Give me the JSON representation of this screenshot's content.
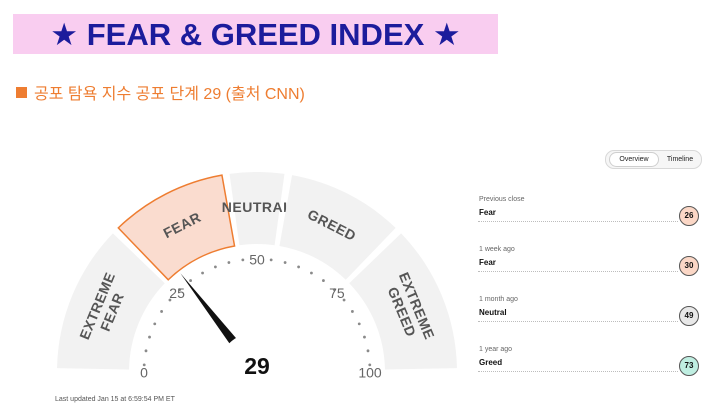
{
  "banner": {
    "title": "★ FEAR & GREED INDEX ★"
  },
  "subtitle": {
    "text": "공포 탐욕 지수 공포 단계 29 (출처 CNN)"
  },
  "gauge": {
    "value": 29,
    "score_text": "29",
    "segments": [
      {
        "label": "EXTREME FEAR",
        "lines": [
          "EXTREME",
          "FEAR"
        ],
        "from": 0,
        "to": 25
      },
      {
        "label": "FEAR",
        "lines": [
          "FEAR"
        ],
        "from": 25,
        "to": 45
      },
      {
        "label": "NEUTRAL",
        "lines": [
          "NEUTRAL"
        ],
        "from": 45,
        "to": 55
      },
      {
        "label": "GREED",
        "lines": [
          "GREED"
        ],
        "from": 55,
        "to": 75
      },
      {
        "label": "EXTREME GREED",
        "lines": [
          "EXTREME",
          "GREED"
        ],
        "from": 75,
        "to": 100
      }
    ],
    "active_segment": "FEAR",
    "ticks": [
      "0",
      "25",
      "50",
      "75",
      "100"
    ],
    "colors": {
      "segment": "#f2f2f2",
      "active": "#fadccf",
      "active_border": "#ee7d31",
      "text": "#555555",
      "needle": "#111111"
    }
  },
  "toggle": {
    "overview": "Overview",
    "timeline": "Timeline",
    "active": "overview"
  },
  "history": [
    {
      "label": "Previous close",
      "value": "Fear",
      "score": "26",
      "color": "#fbd7c6"
    },
    {
      "label": "1 week ago",
      "value": "Fear",
      "score": "30",
      "color": "#fbd7c6"
    },
    {
      "label": "1 month ago",
      "value": "Neutral",
      "score": "49",
      "color": "#e8e8e8"
    },
    {
      "label": "1 year ago",
      "value": "Greed",
      "score": "73",
      "color": "#bfeee1"
    }
  ],
  "updated": "Last updated Jan 15 at 6:59:54 PM ET"
}
